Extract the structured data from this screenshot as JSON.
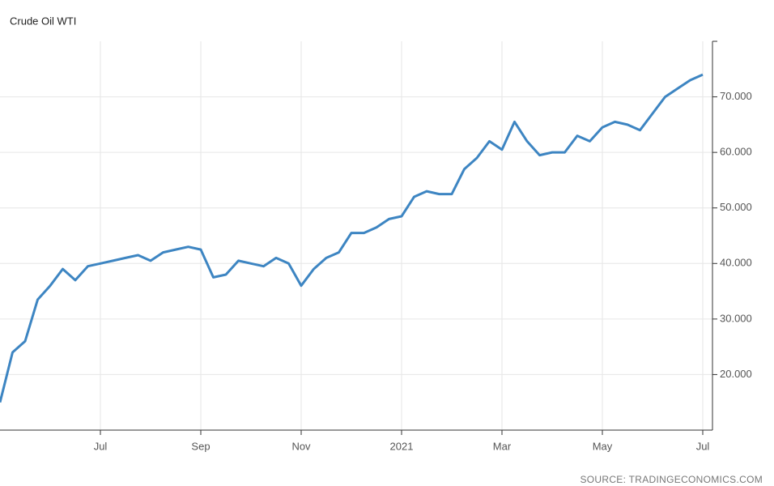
{
  "chart_data": {
    "type": "line",
    "title": "Crude Oil WTI",
    "source": "SOURCE: TRADINGECONOMICS.COM",
    "categories": [
      null,
      null,
      null,
      null,
      null,
      null,
      null,
      null,
      "Jul",
      null,
      null,
      null,
      null,
      null,
      null,
      null,
      "Sep",
      null,
      null,
      null,
      null,
      null,
      null,
      null,
      "Nov",
      null,
      null,
      null,
      null,
      null,
      null,
      null,
      "2021",
      null,
      null,
      null,
      null,
      null,
      null,
      null,
      "Mar",
      null,
      null,
      null,
      null,
      null,
      null,
      null,
      "May",
      null,
      null,
      null,
      null,
      null,
      null,
      null,
      "Jul"
    ],
    "series": [
      {
        "name": "Crude Oil WTI",
        "color": "#3d85c2",
        "values": [
          15,
          24,
          26,
          33.5,
          36,
          39,
          37,
          39.5,
          40,
          40.5,
          41,
          41.5,
          40.5,
          42,
          42.5,
          43,
          42.5,
          37.5,
          38,
          40.5,
          40,
          39.5,
          41,
          40,
          36,
          39,
          41,
          42,
          45.5,
          45.5,
          46.5,
          48,
          48.5,
          52,
          53,
          52.5,
          52.5,
          57,
          59,
          62,
          60.5,
          65.5,
          62,
          59.5,
          60,
          60,
          63,
          62,
          64.5,
          65.5,
          65,
          64,
          67,
          70,
          71.5,
          73,
          74
        ]
      }
    ],
    "ylim": [
      10,
      80
    ],
    "yticks": [
      {
        "value": 20,
        "label": "20.000"
      },
      {
        "value": 30,
        "label": "30.000"
      },
      {
        "value": 40,
        "label": "40.000"
      },
      {
        "value": 50,
        "label": "50.000"
      },
      {
        "value": 60,
        "label": "60.000"
      },
      {
        "value": 70,
        "label": "70.000"
      }
    ],
    "grid": true
  }
}
